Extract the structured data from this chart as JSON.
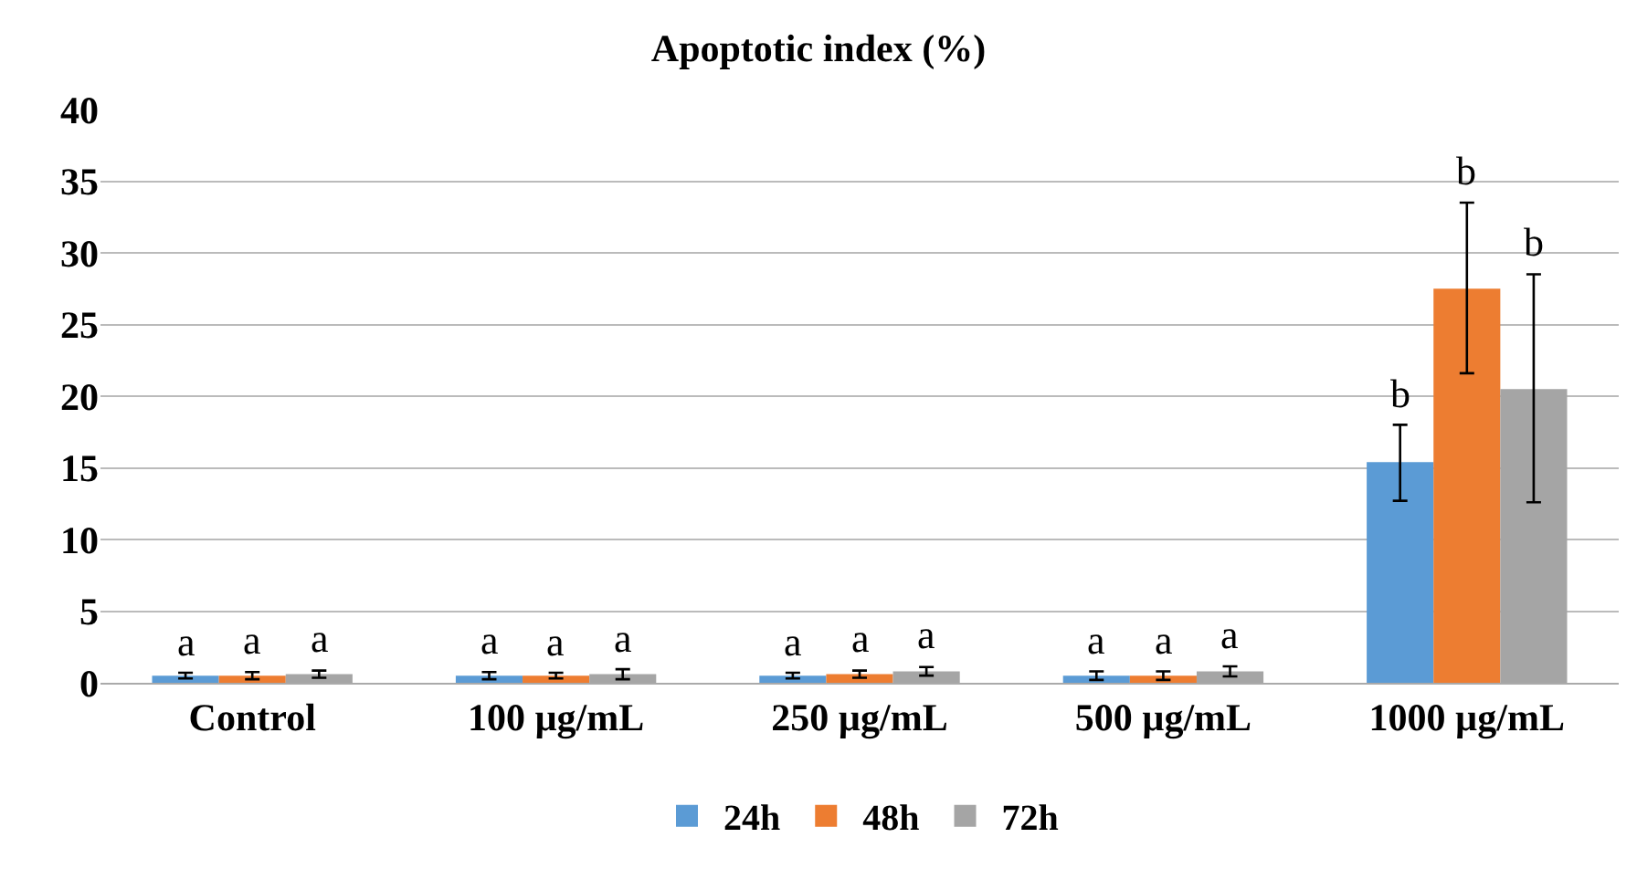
{
  "chart_data": {
    "type": "bar",
    "title": "Apoptotic index (%)",
    "categories": [
      "Control",
      "100 µg/mL",
      "250 µg/mL",
      "500 µg/mL",
      "1000 µg/mL"
    ],
    "series": [
      {
        "name": "24h",
        "color": "#5b9bd5",
        "values": [
          0.5,
          0.5,
          0.5,
          0.5,
          15.4
        ],
        "errors": [
          0.2,
          0.25,
          0.2,
          0.3,
          [
            12.7,
            18.0
          ]
        ],
        "value_labels": [
          "a",
          "a",
          "a",
          "a",
          "b"
        ]
      },
      {
        "name": "48h",
        "color": "#ed7d31",
        "values": [
          0.5,
          0.5,
          0.6,
          0.5,
          27.5
        ],
        "errors": [
          0.25,
          0.2,
          0.25,
          0.3,
          [
            21.6,
            33.5
          ]
        ],
        "value_labels": [
          "a",
          "a",
          "a",
          "a",
          "b"
        ]
      },
      {
        "name": "72h",
        "color": "#a5a5a5",
        "values": [
          0.6,
          0.6,
          0.8,
          0.8,
          20.5
        ],
        "errors": [
          0.25,
          0.35,
          0.3,
          0.35,
          [
            12.6,
            28.5
          ]
        ],
        "value_labels": [
          "a",
          "a",
          "a",
          "a",
          "b"
        ]
      }
    ],
    "ylim": [
      0,
      40
    ],
    "yticks": [
      0,
      5,
      10,
      15,
      20,
      25,
      30,
      35,
      40
    ],
    "grid": "y",
    "legend": "bottom"
  }
}
